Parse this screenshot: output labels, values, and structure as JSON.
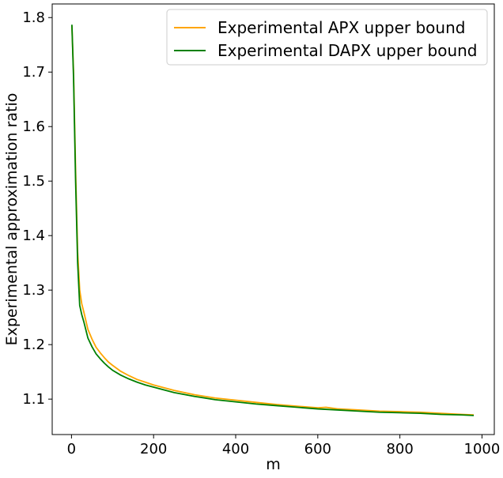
{
  "chart_data": {
    "type": "line",
    "title": "",
    "xlabel": "m",
    "ylabel": "Experimental approximation ratio",
    "xlim": [
      -47,
      1030
    ],
    "ylim": [
      1.035,
      1.825
    ],
    "xticks": [
      0,
      200,
      400,
      600,
      800,
      1000
    ],
    "yticks": [
      1.1,
      1.2,
      1.3,
      1.4,
      1.5,
      1.6,
      1.7,
      1.8
    ],
    "grid": false,
    "legend_position": "top-right",
    "series": [
      {
        "name": "Experimental APX upper bound",
        "color": "#ffa500",
        "x": [
          1,
          5,
          10,
          15,
          20,
          25,
          30,
          40,
          50,
          60,
          70,
          80,
          90,
          100,
          120,
          140,
          160,
          180,
          200,
          250,
          300,
          350,
          400,
          450,
          500,
          550,
          600,
          620,
          650,
          700,
          750,
          800,
          850,
          900,
          950,
          980
        ],
        "y": [
          1.785,
          1.7,
          1.52,
          1.37,
          1.3,
          1.275,
          1.26,
          1.228,
          1.21,
          1.195,
          1.185,
          1.176,
          1.168,
          1.162,
          1.151,
          1.143,
          1.136,
          1.131,
          1.126,
          1.116,
          1.108,
          1.102,
          1.098,
          1.094,
          1.09,
          1.087,
          1.084,
          1.085,
          1.082,
          1.08,
          1.078,
          1.077,
          1.076,
          1.074,
          1.072,
          1.071
        ]
      },
      {
        "name": "Experimental DAPX upper bound",
        "color": "#008000",
        "x": [
          1,
          5,
          10,
          15,
          20,
          25,
          30,
          40,
          50,
          60,
          70,
          80,
          90,
          100,
          120,
          140,
          160,
          180,
          200,
          250,
          300,
          350,
          400,
          450,
          500,
          550,
          600,
          650,
          700,
          750,
          800,
          850,
          900,
          950,
          980
        ],
        "y": [
          1.787,
          1.69,
          1.5,
          1.35,
          1.272,
          1.255,
          1.242,
          1.212,
          1.196,
          1.183,
          1.174,
          1.166,
          1.159,
          1.153,
          1.144,
          1.137,
          1.131,
          1.126,
          1.122,
          1.112,
          1.105,
          1.099,
          1.095,
          1.091,
          1.088,
          1.085,
          1.082,
          1.08,
          1.078,
          1.076,
          1.075,
          1.074,
          1.072,
          1.071,
          1.07
        ]
      }
    ]
  }
}
